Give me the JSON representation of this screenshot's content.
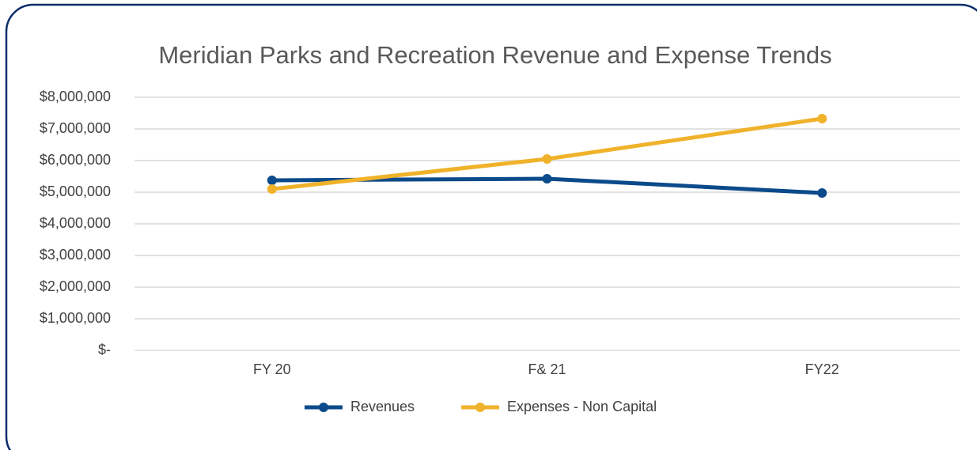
{
  "chart_data": {
    "type": "line",
    "title": "Meridian Parks and Recreation Revenue and Expense Trends",
    "categories": [
      "FY 20",
      "F& 21",
      "FY22"
    ],
    "series": [
      {
        "name": "Revenues",
        "color": "#0b4a8b",
        "values": [
          5375000,
          5425000,
          4975000
        ]
      },
      {
        "name": "Expenses - Non Capital",
        "color": "#f0b22a",
        "values": [
          5100000,
          6050000,
          7325000
        ]
      }
    ],
    "ylim": [
      0,
      8000000
    ],
    "yticks": [
      {
        "value": 0,
        "label": "$-"
      },
      {
        "value": 1000000,
        "label": "$1,000,000"
      },
      {
        "value": 2000000,
        "label": "$2,000,000"
      },
      {
        "value": 3000000,
        "label": "$3,000,000"
      },
      {
        "value": 4000000,
        "label": "$4,000,000"
      },
      {
        "value": 5000000,
        "label": "$5,000,000"
      },
      {
        "value": 6000000,
        "label": "$6,000,000"
      },
      {
        "value": 7000000,
        "label": "$7,000,000"
      },
      {
        "value": 8000000,
        "label": "$8,000,000"
      }
    ],
    "grid": true,
    "legend": "bottom"
  }
}
